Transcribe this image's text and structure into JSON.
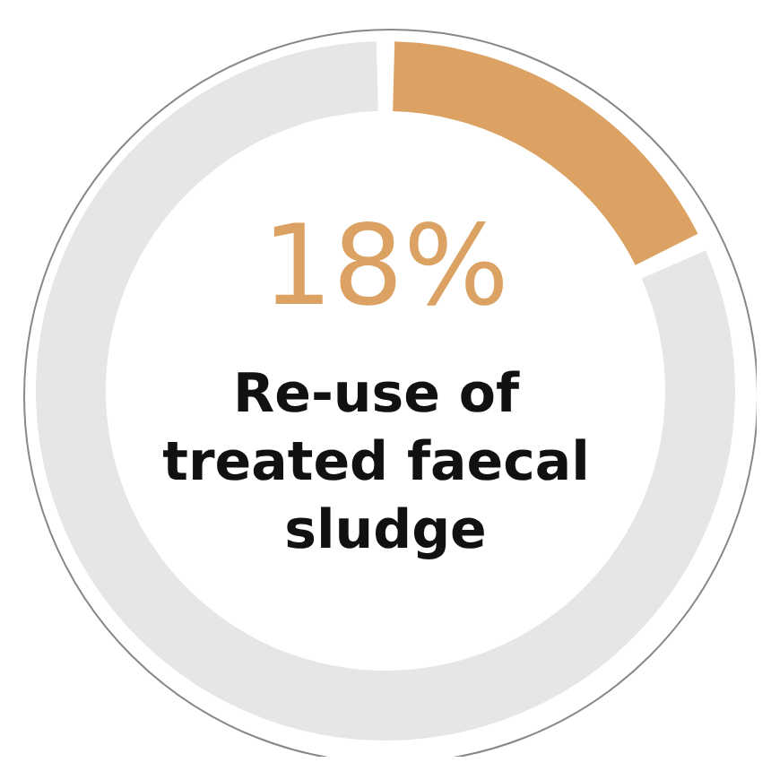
{
  "chart_data": {
    "type": "donut",
    "title": "18%",
    "subtitle": "Re-use of treated faecal sludge",
    "categories": [
      null,
      null
    ],
    "values": [
      18,
      82
    ],
    "colors": [
      "#dba263",
      "#e6e6e6"
    ]
  }
}
